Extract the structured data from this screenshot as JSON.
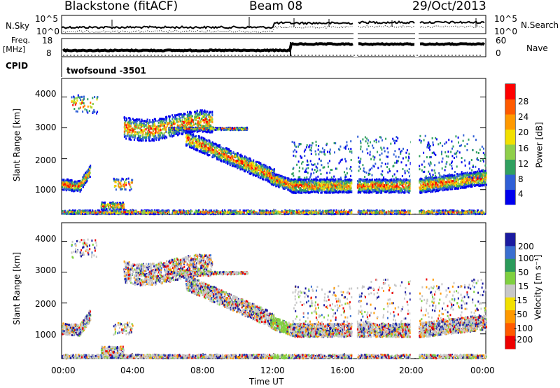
{
  "header": {
    "station": "Blackstone (fitACF)",
    "beam": "Beam 08",
    "date": "29/Oct/2013"
  },
  "chart_data": [
    {
      "type": "line",
      "panel": "noise",
      "left_label": "N.Sky",
      "right_label": "N.Search",
      "left_ticks": [
        "10^5",
        "10^0"
      ],
      "right_ticks": [
        "10^5",
        "10^0"
      ]
    },
    {
      "type": "line",
      "panel": "frequency",
      "left_label": "Freq.",
      "left_unit": "[MHz]",
      "left_ticks": [
        18,
        8
      ],
      "right_label": "Nave",
      "right_ticks": [
        60,
        0
      ]
    },
    {
      "type": "table",
      "panel": "cpid",
      "label": "CPID",
      "value": "twofsound  -3501"
    },
    {
      "type": "heatmap",
      "panel": "power",
      "ylabel": "Slant Range [km]",
      "yticks": [
        1000,
        2000,
        3000,
        4000
      ],
      "ylim": [
        200,
        4600
      ],
      "colorbar_label": "Power [dB]",
      "colorbar_ticks": [
        4,
        8,
        12,
        16,
        20,
        24,
        28
      ],
      "colors": [
        "#0000ee",
        "#2f5fd6",
        "#30a060",
        "#8fcf4a",
        "#f2e000",
        "#ff9900",
        "#ff5a00",
        "#ff0000"
      ]
    },
    {
      "type": "heatmap",
      "panel": "velocity",
      "ylabel": "Slant Range [km]",
      "yticks": [
        1000,
        2000,
        3000,
        4000
      ],
      "ylim": [
        200,
        4600
      ],
      "colorbar_label": "Velocity [m s⁻¹]",
      "colorbar_ticks": [
        200,
        100,
        50,
        15,
        -15,
        -50,
        -100,
        -200
      ],
      "colors": [
        "#1a1aa0",
        "#3a6fd0",
        "#2a9a5a",
        "#7fd040",
        "#c8c8c8",
        "#f2e000",
        "#ff9900",
        "#ff5a00",
        "#ee0000"
      ],
      "xlabel": "Time UT",
      "xticks": [
        "00:00",
        "04:00",
        "08:00",
        "12:00",
        "16:00",
        "20:00",
        "00:00"
      ]
    }
  ]
}
